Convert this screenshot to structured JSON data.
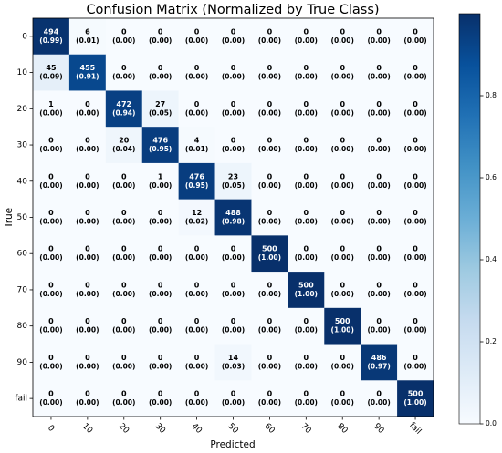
{
  "chart_data": {
    "type": "heatmap",
    "title": "Confusion Matrix (Normalized by True Class)",
    "xlabel": "Predicted",
    "ylabel": "True",
    "categories": [
      "0",
      "10",
      "20",
      "30",
      "40",
      "50",
      "60",
      "70",
      "80",
      "90",
      "fail"
    ],
    "values": [
      [
        494,
        6,
        0,
        0,
        0,
        0,
        0,
        0,
        0,
        0,
        0
      ],
      [
        45,
        455,
        0,
        0,
        0,
        0,
        0,
        0,
        0,
        0,
        0
      ],
      [
        1,
        0,
        472,
        27,
        0,
        0,
        0,
        0,
        0,
        0,
        0
      ],
      [
        0,
        0,
        20,
        476,
        4,
        0,
        0,
        0,
        0,
        0,
        0
      ],
      [
        0,
        0,
        0,
        1,
        476,
        23,
        0,
        0,
        0,
        0,
        0
      ],
      [
        0,
        0,
        0,
        0,
        12,
        488,
        0,
        0,
        0,
        0,
        0
      ],
      [
        0,
        0,
        0,
        0,
        0,
        0,
        500,
        0,
        0,
        0,
        0
      ],
      [
        0,
        0,
        0,
        0,
        0,
        0,
        0,
        500,
        0,
        0,
        0
      ],
      [
        0,
        0,
        0,
        0,
        0,
        0,
        0,
        0,
        500,
        0,
        0
      ],
      [
        0,
        0,
        0,
        0,
        0,
        14,
        0,
        0,
        0,
        486,
        0
      ],
      [
        0,
        0,
        0,
        0,
        0,
        0,
        0,
        0,
        0,
        0,
        500
      ]
    ],
    "normalized": [
      [
        0.99,
        0.01,
        0,
        0,
        0,
        0,
        0,
        0,
        0,
        0,
        0
      ],
      [
        0.09,
        0.91,
        0,
        0,
        0,
        0,
        0,
        0,
        0,
        0,
        0
      ],
      [
        0,
        0,
        0.94,
        0.05,
        0,
        0,
        0,
        0,
        0,
        0,
        0
      ],
      [
        0,
        0,
        0.04,
        0.95,
        0.01,
        0,
        0,
        0,
        0,
        0,
        0
      ],
      [
        0,
        0,
        0,
        0,
        0.95,
        0.05,
        0,
        0,
        0,
        0,
        0
      ],
      [
        0,
        0,
        0,
        0,
        0.02,
        0.98,
        0,
        0,
        0,
        0,
        0
      ],
      [
        0,
        0,
        0,
        0,
        0,
        0,
        1,
        0,
        0,
        0,
        0
      ],
      [
        0,
        0,
        0,
        0,
        0,
        0,
        0,
        1,
        0,
        0,
        0
      ],
      [
        0,
        0,
        0,
        0,
        0,
        0,
        0,
        0,
        1,
        0,
        0
      ],
      [
        0,
        0,
        0,
        0,
        0,
        0.03,
        0,
        0,
        0,
        0.97,
        0
      ],
      [
        0,
        0,
        0,
        0,
        0,
        0,
        0,
        0,
        0,
        0,
        1
      ]
    ],
    "normalized_labels": [
      [
        "(0.99)",
        "(0.01)",
        "(0.00)",
        "(0.00)",
        "(0.00)",
        "(0.00)",
        "(0.00)",
        "(0.00)",
        "(0.00)",
        "(0.00)",
        "(0.00)"
      ],
      [
        "(0.09)",
        "(0.91)",
        "(0.00)",
        "(0.00)",
        "(0.00)",
        "(0.00)",
        "(0.00)",
        "(0.00)",
        "(0.00)",
        "(0.00)",
        "(0.00)"
      ],
      [
        "(0.00)",
        "(0.00)",
        "(0.94)",
        "(0.05)",
        "(0.00)",
        "(0.00)",
        "(0.00)",
        "(0.00)",
        "(0.00)",
        "(0.00)",
        "(0.00)"
      ],
      [
        "(0.00)",
        "(0.00)",
        "(0.04)",
        "(0.95)",
        "(0.01)",
        "(0.00)",
        "(0.00)",
        "(0.00)",
        "(0.00)",
        "(0.00)",
        "(0.00)"
      ],
      [
        "(0.00)",
        "(0.00)",
        "(0.00)",
        "(0.00)",
        "(0.95)",
        "(0.05)",
        "(0.00)",
        "(0.00)",
        "(0.00)",
        "(0.00)",
        "(0.00)"
      ],
      [
        "(0.00)",
        "(0.00)",
        "(0.00)",
        "(0.00)",
        "(0.02)",
        "(0.98)",
        "(0.00)",
        "(0.00)",
        "(0.00)",
        "(0.00)",
        "(0.00)"
      ],
      [
        "(0.00)",
        "(0.00)",
        "(0.00)",
        "(0.00)",
        "(0.00)",
        "(0.00)",
        "(1.00)",
        "(0.00)",
        "(0.00)",
        "(0.00)",
        "(0.00)"
      ],
      [
        "(0.00)",
        "(0.00)",
        "(0.00)",
        "(0.00)",
        "(0.00)",
        "(0.00)",
        "(0.00)",
        "(1.00)",
        "(0.00)",
        "(0.00)",
        "(0.00)"
      ],
      [
        "(0.00)",
        "(0.00)",
        "(0.00)",
        "(0.00)",
        "(0.00)",
        "(0.00)",
        "(0.00)",
        "(0.00)",
        "(1.00)",
        "(0.00)",
        "(0.00)"
      ],
      [
        "(0.00)",
        "(0.00)",
        "(0.00)",
        "(0.00)",
        "(0.00)",
        "(0.03)",
        "(0.00)",
        "(0.00)",
        "(0.00)",
        "(0.97)",
        "(0.00)"
      ],
      [
        "(0.00)",
        "(0.00)",
        "(0.00)",
        "(0.00)",
        "(0.00)",
        "(0.00)",
        "(0.00)",
        "(0.00)",
        "(0.00)",
        "(0.00)",
        "(1.00)"
      ]
    ],
    "zlim": [
      0,
      1
    ],
    "colorbar_ticks": [
      {
        "value": 0,
        "label": "0.0"
      },
      {
        "value": 0.2,
        "label": "0.2"
      },
      {
        "value": 0.4,
        "label": "0.4"
      },
      {
        "value": 0.6,
        "label": "0.6"
      },
      {
        "value": 0.8,
        "label": "0.8"
      }
    ],
    "colormap": "Blues"
  }
}
